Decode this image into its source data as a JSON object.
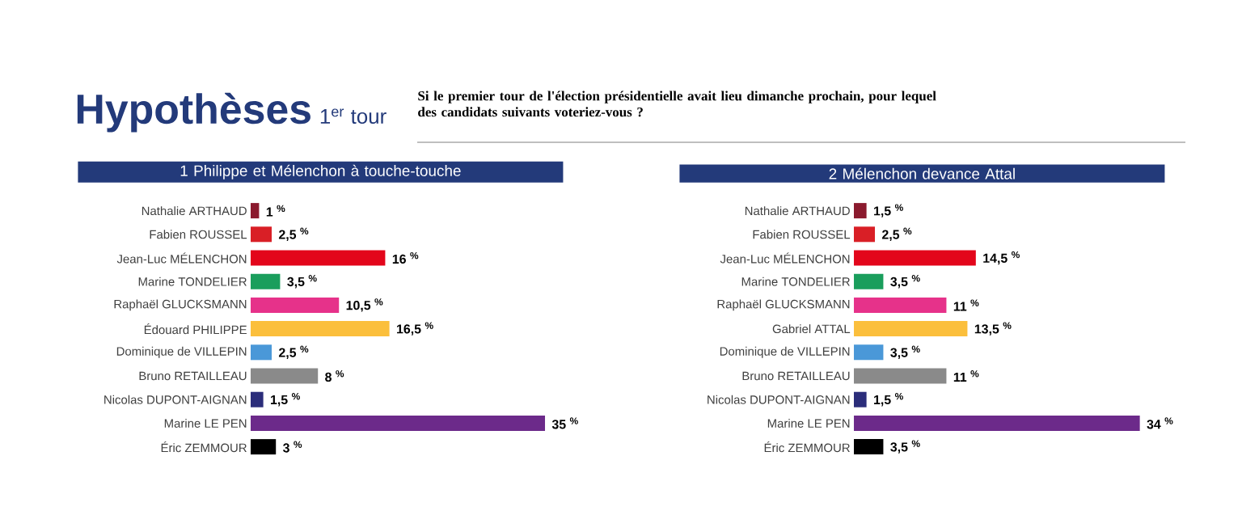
{
  "chart_data": [
    {
      "type": "other",
      "title": "Hypothèses",
      "subtitle": "1$^{er}$ tour",
      "annotations": [
        "Si le premier tour de l'élection présidentielle avait lieu dimanche prochain, pour lequel des candidats suivants voteriez-vous ?"
      ]
    },
    {
      "type": "bar",
      "orientation": "horizontal",
      "title": "1 Philippe et Mélenchon à touche-touche",
      "categories": [
        "Nathalie ARTHAUD",
        "Fabien ROUSSEL",
        "Jean-Luc MÉLENCHON",
        "Marine TONDELIER",
        "Raphaël GLUCKSMANN",
        "Édouard PHILIPPE",
        "Dominique de VILLEPIN",
        "Bruno RETAILLEAU",
        "Nicolas DUPONT-AIGNAN",
        "Marine LE PEN",
        "Éric ZEMMOUR"
      ],
      "values": [
        1,
        2.5,
        16,
        3.5,
        10.5,
        16.5,
        2.5,
        8,
        1.5,
        35,
        3
      ],
      "value_labels": [
        "1 $^{%}$",
        "2,5 $^{%}$",
        "16 $^{%}$",
        "3,5 $^{%}$",
        "10,5 $^{%}$",
        "16,5 $^{%}$",
        "2,5 $^{%}$",
        "8 $^{%}$",
        "1,5 $^{%}$",
        "35 $^{%}$",
        "3 $^{%}$"
      ],
      "colors": [
        "#8b1a2e",
        "#d91f26",
        "#e3061b",
        "#1a9e5c",
        "#e6328a",
        "#fbbf3c",
        "#4a98d8",
        "#8a8a8a",
        "#2b2d7a",
        "#6c2a8a",
        "#000000"
      ]
    },
    {
      "type": "bar",
      "orientation": "horizontal",
      "title": "2 Mélenchon devance Attal",
      "categories": [
        "Nathalie ARTHAUD",
        "Fabien ROUSSEL",
        "Jean-Luc MÉLENCHON",
        "Marine TONDELIER",
        "Raphaël GLUCKSMANN",
        "Gabriel ATTAL",
        "Dominique de VILLEPIN",
        "Bruno RETAILLEAU",
        "Nicolas DUPONT-AIGNAN",
        "Marine LE PEN",
        "Éric ZEMMOUR"
      ],
      "values": [
        1.5,
        2.5,
        14.5,
        3.5,
        11,
        13.5,
        3.5,
        11,
        1.5,
        34,
        3.5
      ],
      "value_labels": [
        "1,5 $^{%}$",
        "2,5 $^{%}$",
        "14,5 $^{%}$",
        "3,5 $^{%}$",
        "11 $^{%}$",
        "13,5 $^{%}$",
        "3,5 $^{%}$",
        "11 $^{%}$",
        "1,5 $^{%}$",
        "34 $^{%}$",
        "3,5 $^{%}$"
      ],
      "colors": [
        "#8b1a2e",
        "#d91f26",
        "#e3061b",
        "#1a9e5c",
        "#e6328a",
        "#fbbf3c",
        "#4a98d8",
        "#8a8a8a",
        "#2b2d7a",
        "#6c2a8a",
        "#000000"
      ]
    }
  ]
}
